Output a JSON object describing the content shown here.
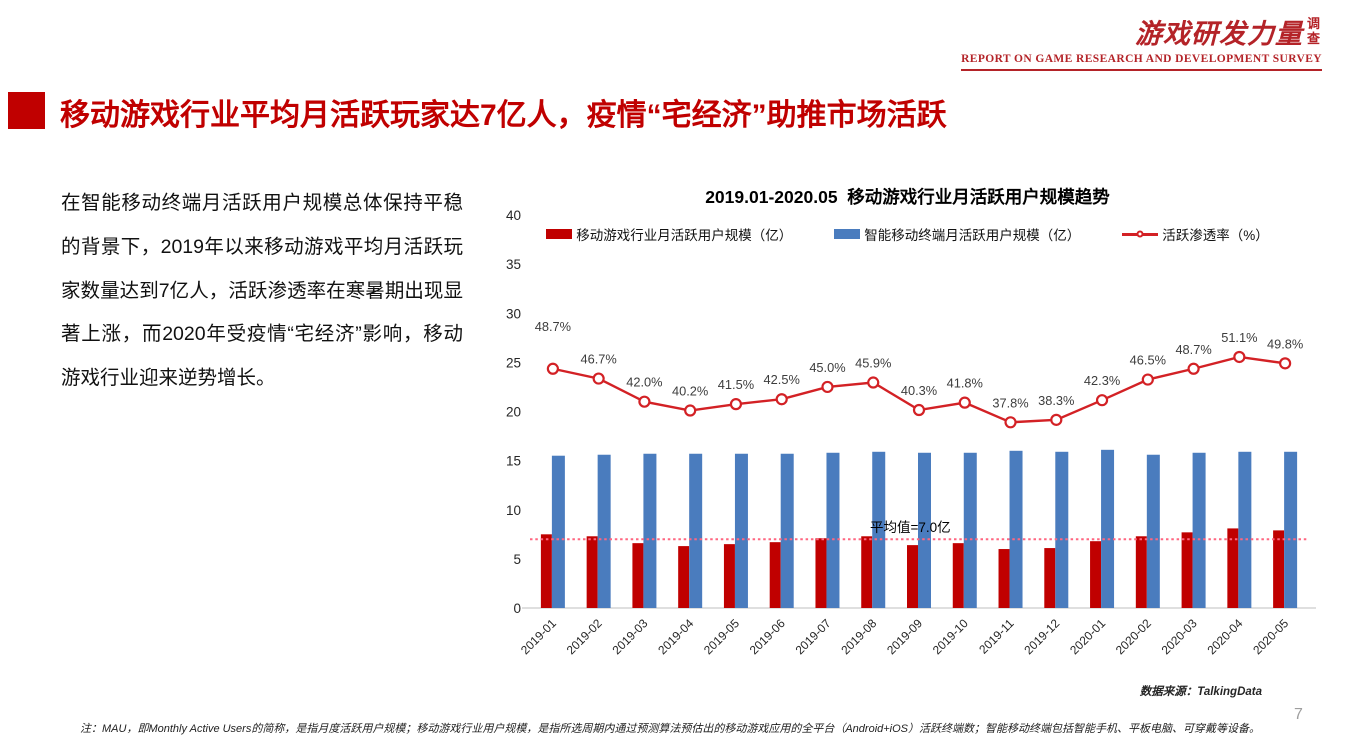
{
  "logo": {
    "title": "游戏研发力量",
    "side": "调查",
    "subtitle": "REPORT ON GAME RESEARCH AND DEVELOPMENT SURVEY"
  },
  "header": {
    "title": "移动游戏行业平均月活跃玩家达7亿人，疫情“宅经济”助推市场活跃"
  },
  "body_text": "在智能移动终端月活跃用户规模总体保持平稳的背景下，2019年以来移动游戏平均月活跃玩家数量达到7亿人，活跃渗透率在寒暑期出现显著上涨，而2020年受疫情“宅经济”影响，移动游戏行业迎来逆势增长。",
  "chart_data": {
    "type": "bar",
    "title": "2019.01-2020.05  移动游戏行业月活跃用户规模趋势",
    "categories": [
      "2019-01",
      "2019-02",
      "2019-03",
      "2019-04",
      "2019-05",
      "2019-06",
      "2019-07",
      "2019-08",
      "2019-09",
      "2019-10",
      "2019-11",
      "2019-12",
      "2020-01",
      "2020-02",
      "2020-03",
      "2020-04",
      "2020-05"
    ],
    "series": [
      {
        "name": "移动游戏行业月活跃用户规模（亿）",
        "type": "bar",
        "color": "#c00000",
        "values": [
          7.5,
          7.3,
          6.6,
          6.3,
          6.5,
          6.7,
          7.1,
          7.3,
          6.4,
          6.6,
          6.0,
          6.1,
          6.8,
          7.3,
          7.7,
          8.1,
          7.9
        ]
      },
      {
        "name": "智能移动终端月活跃用户规模（亿）",
        "type": "bar",
        "color": "#4a7cbe",
        "values": [
          15.5,
          15.6,
          15.7,
          15.7,
          15.7,
          15.7,
          15.8,
          15.9,
          15.8,
          15.8,
          16.0,
          15.9,
          16.1,
          15.6,
          15.8,
          15.9,
          15.9
        ]
      },
      {
        "name": "活跃渗透率（%）",
        "type": "line",
        "color": "#d32125",
        "values": [
          48.7,
          46.7,
          42.0,
          40.2,
          41.5,
          42.5,
          45.0,
          45.9,
          40.3,
          41.8,
          37.8,
          38.3,
          42.3,
          46.5,
          48.7,
          51.1,
          49.8
        ]
      }
    ],
    "ylim": [
      0,
      40
    ],
    "ytick_step": 5,
    "line_axis_range": [
      0,
      80
    ],
    "avg_line": {
      "label": "平均值=7.0亿",
      "value": 7.0,
      "color": "#ff6680"
    },
    "legend_position": "top",
    "grid": false
  },
  "source": "数据来源：TalkingData",
  "footnote": "注：MAU，即Monthly Active Users的简称，是指月度活跃用户规模；移动游戏行业用户规模，是指所选周期内通过预测算法预估出的移动游戏应用的全平台（Android+iOS）活跃终端数；智能移动终端包括智能手机、平板电脑、可穿戴等设备。",
  "page_number": "7"
}
